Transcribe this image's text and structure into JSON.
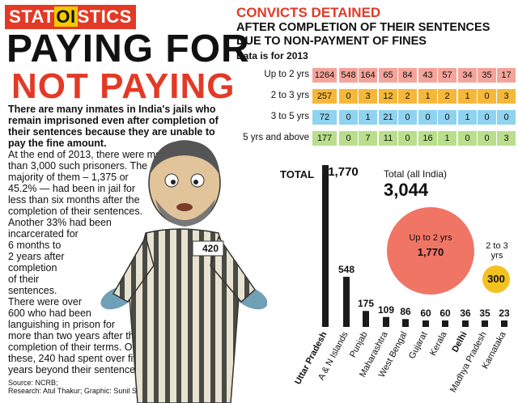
{
  "brand": {
    "part1": "STAT",
    "part2": "OI",
    "part3": "STICS"
  },
  "headline": {
    "line1": "PAYING FOR",
    "line2": "NOT PAYING"
  },
  "intro": "There are many inmates in India's jails who remain imprisoned even after completion of their sentences because they are unable to pay the fine amount.",
  "body_lines": [
    "At the end of 2013, there were more",
    "than 3,000 such prisoners. The",
    "majority of them – 1,375 or",
    "45.2% — had been in jail for",
    "less than six months after the",
    "completion of their sentences.",
    "Another 33% had been",
    "incarcerated for",
    "6 months to",
    "2 years after",
    "completion",
    "of their",
    "sentences.",
    "There were over",
    "600 who had been",
    "languishing in prison for",
    "more than two years after the",
    "completion of their terms. Of",
    "these, 240 had spent over five",
    "years beyond their sentences"
  ],
  "source": {
    "line1": "Source: NCRB;",
    "line2": "Research: Atul Thakur; Graphic: Sunil Singh"
  },
  "illustration": {
    "badge": "420"
  },
  "title": "CONVICTS DETAINED",
  "subtitle": "AFTER COMPLETION OF THEIR SENTENCES DUE TO NON-PAYMENT OF FINES",
  "data_note": "Data is for 2013",
  "table": {
    "rows": [
      {
        "label": "Up to 2 yrs",
        "color": "#f4a49a",
        "values": [
          "1264",
          "548",
          "164",
          "65",
          "84",
          "43",
          "57",
          "34",
          "35",
          "17"
        ]
      },
      {
        "label": "2 to 3 yrs",
        "color": "#f6b83a",
        "values": [
          "257",
          "0",
          "3",
          "12",
          "2",
          "1",
          "2",
          "1",
          "0",
          "3"
        ]
      },
      {
        "label": "3 to 5 yrs",
        "color": "#8fd3f0",
        "values": [
          "72",
          "0",
          "1",
          "21",
          "0",
          "0",
          "0",
          "1",
          "0",
          "0"
        ]
      },
      {
        "label": "5 yrs and above",
        "color": "#b9de8c",
        "values": [
          "177",
          "0",
          "7",
          "11",
          "0",
          "16",
          "1",
          "0",
          "0",
          "3"
        ]
      }
    ]
  },
  "total_label": "TOTAL",
  "total_all_india": {
    "label": "Total (all India)",
    "value": "3,044"
  },
  "circles": [
    {
      "label": "Up to 2 yrs",
      "value": "1,770",
      "color": "#f07565"
    },
    {
      "label": "2 to 3 yrs",
      "value": "300",
      "color": "#f4c21f"
    }
  ],
  "chart_data": {
    "type": "bar",
    "categories": [
      "Uttar Pradesh",
      "A & N Islands",
      "Punjab",
      "Maharashtra",
      "West Bengal",
      "Gujarat",
      "Kerala",
      "Delhi",
      "Madhya Pradesh",
      "Karnataka"
    ],
    "values": [
      1770,
      548,
      175,
      109,
      86,
      60,
      60,
      36,
      35,
      23
    ],
    "value_labels": [
      "1,770",
      "548",
      "175",
      "109",
      "86",
      "60",
      "60",
      "36",
      "35",
      "23"
    ],
    "bold_categories": [
      "Uttar Pradesh",
      "Delhi"
    ],
    "bar_color": "#1a1a1a"
  }
}
